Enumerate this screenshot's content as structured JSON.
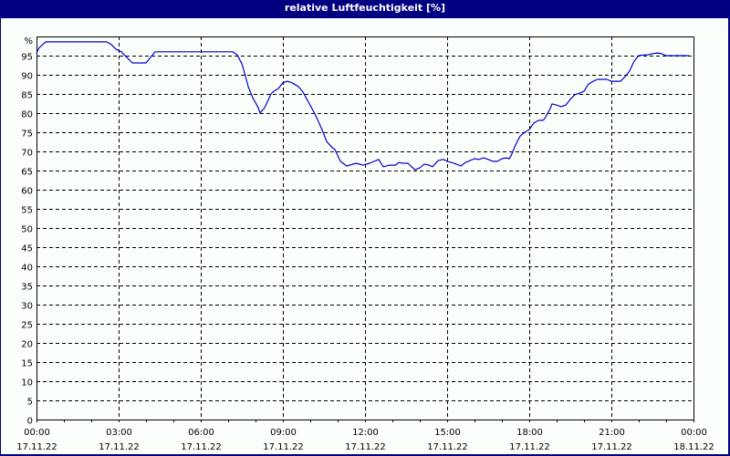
{
  "window": {
    "title": "relative Luftfeuchtigkeit [%]"
  },
  "colors": {
    "frame": "#000080",
    "background": "#fbfffb",
    "line": "#0000cc",
    "grid": "#000000"
  },
  "yaxis": {
    "unit_label": "%",
    "ticks": [
      "0",
      "5",
      "10",
      "15",
      "20",
      "25",
      "30",
      "35",
      "40",
      "45",
      "50",
      "55",
      "60",
      "65",
      "70",
      "75",
      "80",
      "85",
      "90",
      "95"
    ]
  },
  "xaxis": {
    "ticks": [
      {
        "time": "00:00",
        "date": "17.11.22"
      },
      {
        "time": "03:00",
        "date": "17.11.22"
      },
      {
        "time": "06:00",
        "date": "17.11.22"
      },
      {
        "time": "09:00",
        "date": "17.11.22"
      },
      {
        "time": "12:00",
        "date": "17.11.22"
      },
      {
        "time": "15:00",
        "date": "17.11.22"
      },
      {
        "time": "18:00",
        "date": "17.11.22"
      },
      {
        "time": "21:00",
        "date": "17.11.22"
      },
      {
        "time": "00:00",
        "date": "18.11.22"
      }
    ]
  },
  "chart_data": {
    "type": "line",
    "title": "relative Luftfeuchtigkeit [%]",
    "xlabel": "",
    "ylabel": "%",
    "ylim": [
      0,
      100
    ],
    "xlim": [
      "17.11.22 00:00",
      "18.11.22 00:00"
    ],
    "grid": true,
    "legend": "none",
    "series": [
      {
        "name": "relative Luftfeuchtigkeit",
        "x": [
          "00:00",
          "00:06",
          "00:20",
          "02:34",
          "02:44",
          "02:54",
          "03:06",
          "03:20",
          "03:30",
          "04:00",
          "04:20",
          "07:10",
          "07:20",
          "07:30",
          "07:36",
          "07:44",
          "07:54",
          "08:06",
          "08:10",
          "08:20",
          "08:34",
          "08:40",
          "08:50",
          "09:00",
          "09:10",
          "09:20",
          "09:34",
          "09:44",
          "09:56",
          "10:10",
          "10:24",
          "10:36",
          "10:48",
          "10:54",
          "11:06",
          "11:20",
          "11:40",
          "11:56",
          "12:10",
          "12:30",
          "12:40",
          "12:54",
          "13:06",
          "13:14",
          "13:24",
          "13:34",
          "13:40",
          "13:50",
          "14:00",
          "14:10",
          "14:20",
          "14:28",
          "14:40",
          "14:52",
          "15:00",
          "15:10",
          "15:20",
          "15:30",
          "15:40",
          "15:50",
          "16:00",
          "16:10",
          "16:20",
          "16:30",
          "16:40",
          "16:50",
          "17:00",
          "17:10",
          "17:16",
          "17:20",
          "17:30",
          "17:40",
          "17:50",
          "18:00",
          "18:10",
          "18:20",
          "18:30",
          "18:34",
          "18:46",
          "18:50",
          "19:00",
          "19:10",
          "19:20",
          "19:30",
          "19:40",
          "19:50",
          "20:00",
          "20:10",
          "20:20",
          "20:30",
          "20:50",
          "21:00",
          "21:20",
          "21:30",
          "21:40",
          "21:50",
          "22:00",
          "22:10",
          "22:20",
          "22:30",
          "22:40",
          "22:50",
          "23:00",
          "23:50"
        ],
        "values": [
          95.7,
          97.1,
          98.6,
          98.6,
          97.9,
          96.7,
          96.0,
          94.3,
          93.1,
          93.1,
          96.0,
          96.0,
          95.2,
          92.9,
          90.5,
          86.9,
          84.0,
          81.4,
          80.0,
          81.4,
          85.0,
          85.7,
          86.4,
          87.9,
          88.3,
          87.9,
          86.9,
          85.5,
          82.9,
          79.8,
          76.2,
          72.6,
          71.0,
          70.5,
          67.4,
          66.2,
          66.9,
          66.4,
          66.9,
          67.9,
          66.0,
          66.4,
          66.4,
          67.1,
          66.9,
          66.9,
          66.2,
          65.2,
          65.7,
          66.7,
          66.4,
          66.0,
          67.6,
          67.9,
          67.4,
          67.1,
          66.7,
          66.2,
          67.1,
          67.6,
          68.1,
          67.9,
          68.3,
          67.9,
          67.4,
          67.4,
          68.1,
          68.3,
          68.1,
          68.8,
          71.7,
          74.0,
          75.0,
          75.7,
          77.4,
          78.1,
          78.1,
          78.6,
          81.2,
          82.4,
          82.1,
          81.7,
          82.1,
          83.6,
          84.8,
          85.2,
          85.7,
          87.6,
          88.3,
          88.8,
          88.8,
          88.3,
          88.3,
          89.5,
          91.0,
          93.6,
          95.0,
          95.2,
          95.2,
          95.5,
          95.7,
          95.5,
          95.0,
          95.0
        ]
      }
    ]
  }
}
